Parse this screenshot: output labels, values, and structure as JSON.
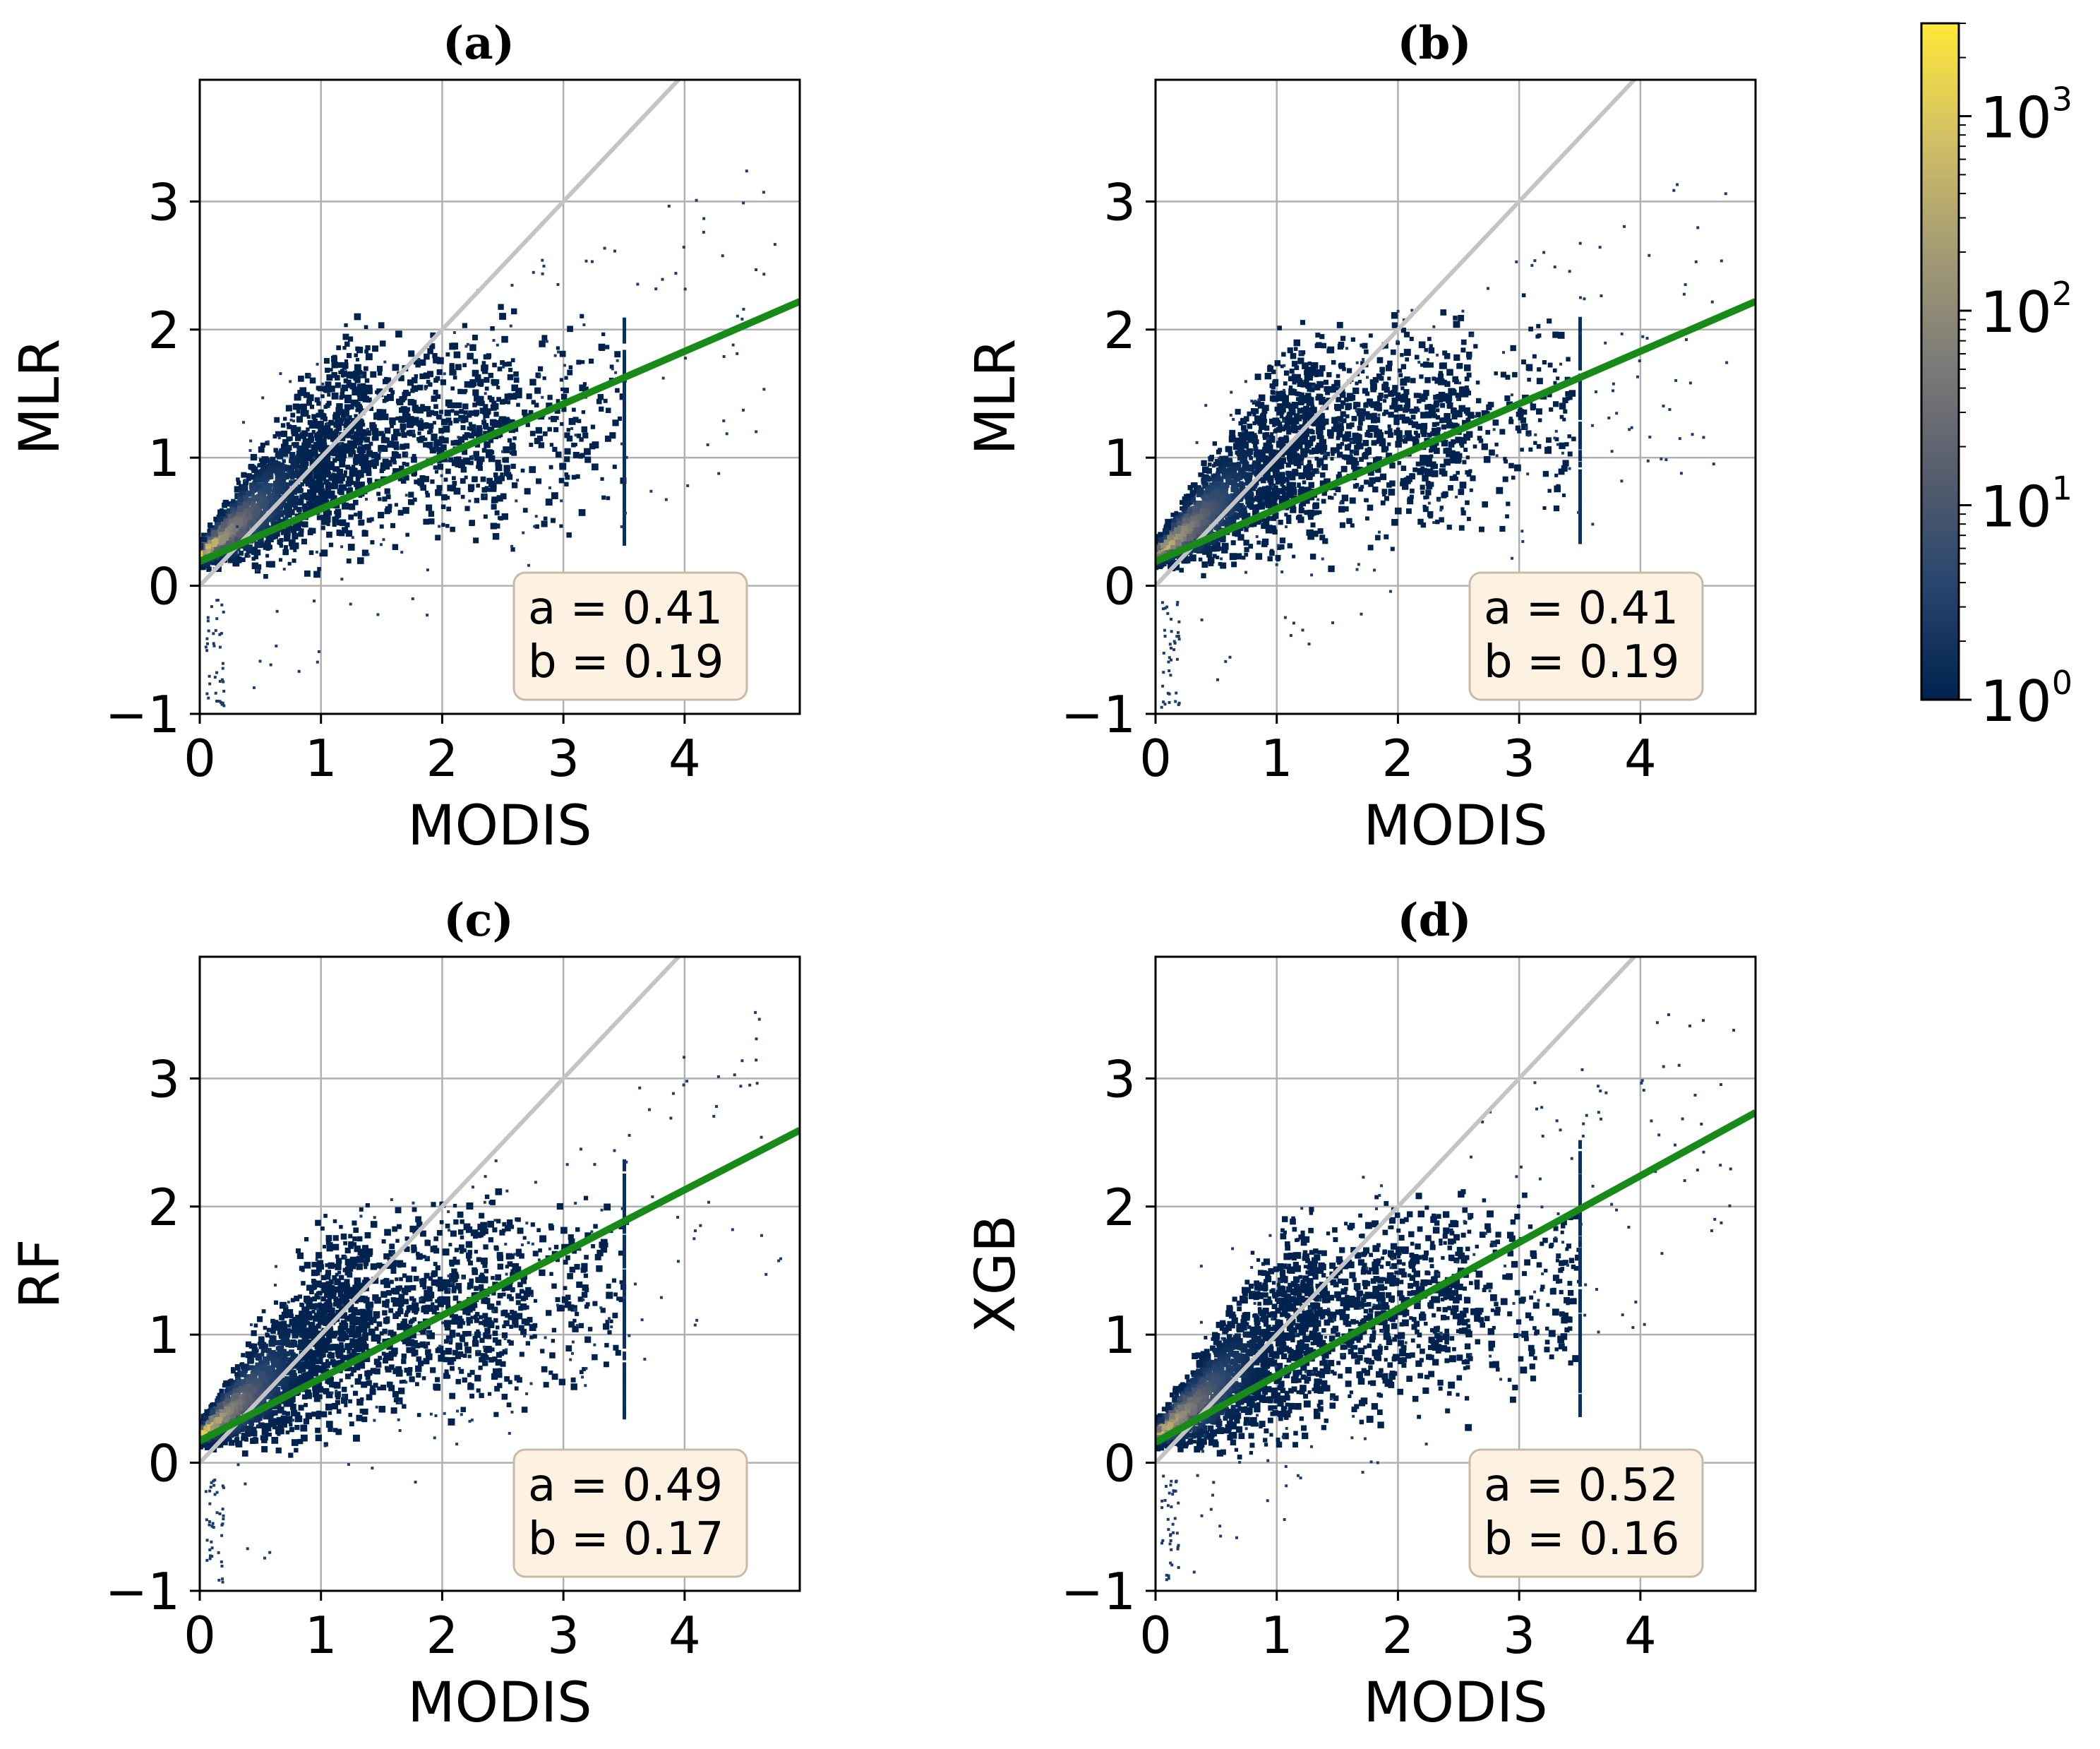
{
  "chart_data": [
    {
      "type": "heatmap",
      "panel_label": "(a)",
      "xlabel": "MODIS",
      "ylabel": "MLR",
      "xlim": [
        0,
        4.95
      ],
      "ylim": [
        -1,
        3.95
      ],
      "xticks": [
        0,
        1,
        2,
        3,
        4
      ],
      "yticks": [
        -1,
        0,
        1,
        2,
        3
      ],
      "xtick_labels": [
        "0",
        "1",
        "2",
        "3",
        "4"
      ],
      "ytick_labels": [
        "−1",
        "0",
        "1",
        "2",
        "3"
      ],
      "grid": true,
      "identity_line": {
        "slope": 1,
        "intercept": 0,
        "color": "#c4c4c4"
      },
      "fit_line": {
        "slope": 0.41,
        "intercept": 0.19,
        "color": "#178a17"
      },
      "fit_text": [
        "a = 0.41",
        "b = 0.19"
      ],
      "stats_box_position": "bottom-right",
      "density": {
        "x_max": 3.5,
        "y_spread_low": 0.55,
        "y_spread_high": 1.35,
        "slope": 0.41,
        "intercept": 0.19
      }
    },
    {
      "type": "heatmap",
      "panel_label": "(b)",
      "xlabel": "MODIS",
      "ylabel": "MLR",
      "xlim": [
        0,
        4.95
      ],
      "ylim": [
        -1,
        3.95
      ],
      "xticks": [
        0,
        1,
        2,
        3,
        4
      ],
      "yticks": [
        -1,
        0,
        1,
        2,
        3
      ],
      "xtick_labels": [
        "0",
        "1",
        "2",
        "3",
        "4"
      ],
      "ytick_labels": [
        "−1",
        "0",
        "1",
        "2",
        "3"
      ],
      "grid": true,
      "identity_line": {
        "slope": 1,
        "intercept": 0,
        "color": "#c4c4c4"
      },
      "fit_line": {
        "slope": 0.41,
        "intercept": 0.19,
        "color": "#178a17"
      },
      "fit_text": [
        "a = 0.41",
        "b = 0.19"
      ],
      "stats_box_position": "bottom-right",
      "density": {
        "x_max": 3.5,
        "y_spread_low": 0.55,
        "y_spread_high": 1.35,
        "slope": 0.41,
        "intercept": 0.19
      }
    },
    {
      "type": "heatmap",
      "panel_label": "(c)",
      "xlabel": "MODIS",
      "ylabel": "RF",
      "xlim": [
        0,
        4.95
      ],
      "ylim": [
        -1,
        3.95
      ],
      "xticks": [
        0,
        1,
        2,
        3,
        4
      ],
      "yticks": [
        -1,
        0,
        1,
        2,
        3
      ],
      "xtick_labels": [
        "0",
        "1",
        "2",
        "3",
        "4"
      ],
      "ytick_labels": [
        "−1",
        "0",
        "1",
        "2",
        "3"
      ],
      "grid": true,
      "identity_line": {
        "slope": 1,
        "intercept": 0,
        "color": "#c4c4c4"
      },
      "fit_line": {
        "slope": 0.49,
        "intercept": 0.17,
        "color": "#178a17"
      },
      "fit_text": [
        "a = 0.49",
        "b = 0.17"
      ],
      "stats_box_position": "bottom-right",
      "density": {
        "x_max": 3.5,
        "y_spread_low": 0.6,
        "y_spread_high": 1.6,
        "slope": 0.49,
        "intercept": 0.17
      }
    },
    {
      "type": "heatmap",
      "panel_label": "(d)",
      "xlabel": "MODIS",
      "ylabel": "XGB",
      "xlim": [
        0,
        4.95
      ],
      "ylim": [
        -1,
        3.95
      ],
      "xticks": [
        0,
        1,
        2,
        3,
        4
      ],
      "yticks": [
        -1,
        0,
        1,
        2,
        3
      ],
      "xtick_labels": [
        "0",
        "1",
        "2",
        "3",
        "4"
      ],
      "ytick_labels": [
        "−1",
        "0",
        "1",
        "2",
        "3"
      ],
      "grid": true,
      "identity_line": {
        "slope": 1,
        "intercept": 0,
        "color": "#c4c4c4"
      },
      "fit_line": {
        "slope": 0.52,
        "intercept": 0.16,
        "color": "#178a17"
      },
      "fit_text": [
        "a = 0.52",
        "b = 0.16"
      ],
      "stats_box_position": "bottom-right",
      "density": {
        "x_max": 3.5,
        "y_spread_low": 0.6,
        "y_spread_high": 1.75,
        "slope": 0.52,
        "intercept": 0.16
      }
    }
  ],
  "colorbar": {
    "scale": "log",
    "range": [
      1,
      3000
    ],
    "colors": [
      "#00224e",
      "#26456e",
      "#575d6d",
      "#7c7b78",
      "#a59c74",
      "#d3c164",
      "#fee838"
    ],
    "ticks": [
      {
        "value": 1,
        "base": "10",
        "exp": "0"
      },
      {
        "value": 10,
        "base": "10",
        "exp": "1"
      },
      {
        "value": 100,
        "base": "10",
        "exp": "2"
      },
      {
        "value": 1000,
        "base": "10",
        "exp": "3"
      }
    ],
    "position": "right"
  }
}
